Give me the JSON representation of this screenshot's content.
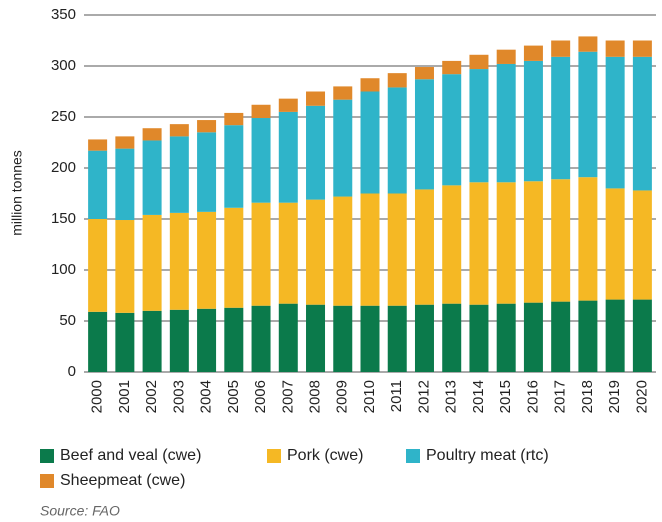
{
  "chart_data": {
    "type": "stacked_bar",
    "ylabel": "million tonnes",
    "source": "Source: FAO",
    "categories": [
      "2000",
      "2001",
      "2002",
      "2003",
      "2004",
      "2005",
      "2006",
      "2007",
      "2008",
      "2009",
      "2010",
      "2011",
      "2012",
      "2013",
      "2014",
      "2015",
      "2016",
      "2017",
      "2018",
      "2019",
      "2020"
    ],
    "series": [
      {
        "name": "Beef and veal (cwe)",
        "color": "#0b7a4b",
        "values": [
          59,
          58,
          60,
          61,
          62,
          63,
          65,
          67,
          66,
          65,
          65,
          65,
          66,
          67,
          66,
          67,
          68,
          69,
          70,
          71,
          71
        ]
      },
      {
        "name": "Pork (cwe)",
        "color": "#f5b824",
        "values": [
          91,
          91,
          94,
          95,
          95,
          98,
          101,
          99,
          103,
          107,
          110,
          110,
          113,
          116,
          120,
          119,
          119,
          120,
          121,
          109,
          107
        ]
      },
      {
        "name": "Poultry meat (rtc)",
        "color": "#2fb4c9",
        "values": [
          67,
          70,
          73,
          75,
          78,
          81,
          83,
          89,
          92,
          95,
          100,
          104,
          108,
          109,
          111,
          116,
          118,
          120,
          123,
          129,
          131
        ]
      },
      {
        "name": "Sheepmeat (cwe)",
        "color": "#e0882a",
        "values": [
          11,
          12,
          12,
          12,
          12,
          12,
          13,
          13,
          14,
          13,
          13,
          14,
          12,
          13,
          14,
          14,
          15,
          16,
          15,
          16,
          16
        ]
      }
    ],
    "ylim": [
      0,
      350
    ],
    "yticks": [
      0,
      50,
      100,
      150,
      200,
      250,
      300,
      350
    ],
    "grid": true
  }
}
